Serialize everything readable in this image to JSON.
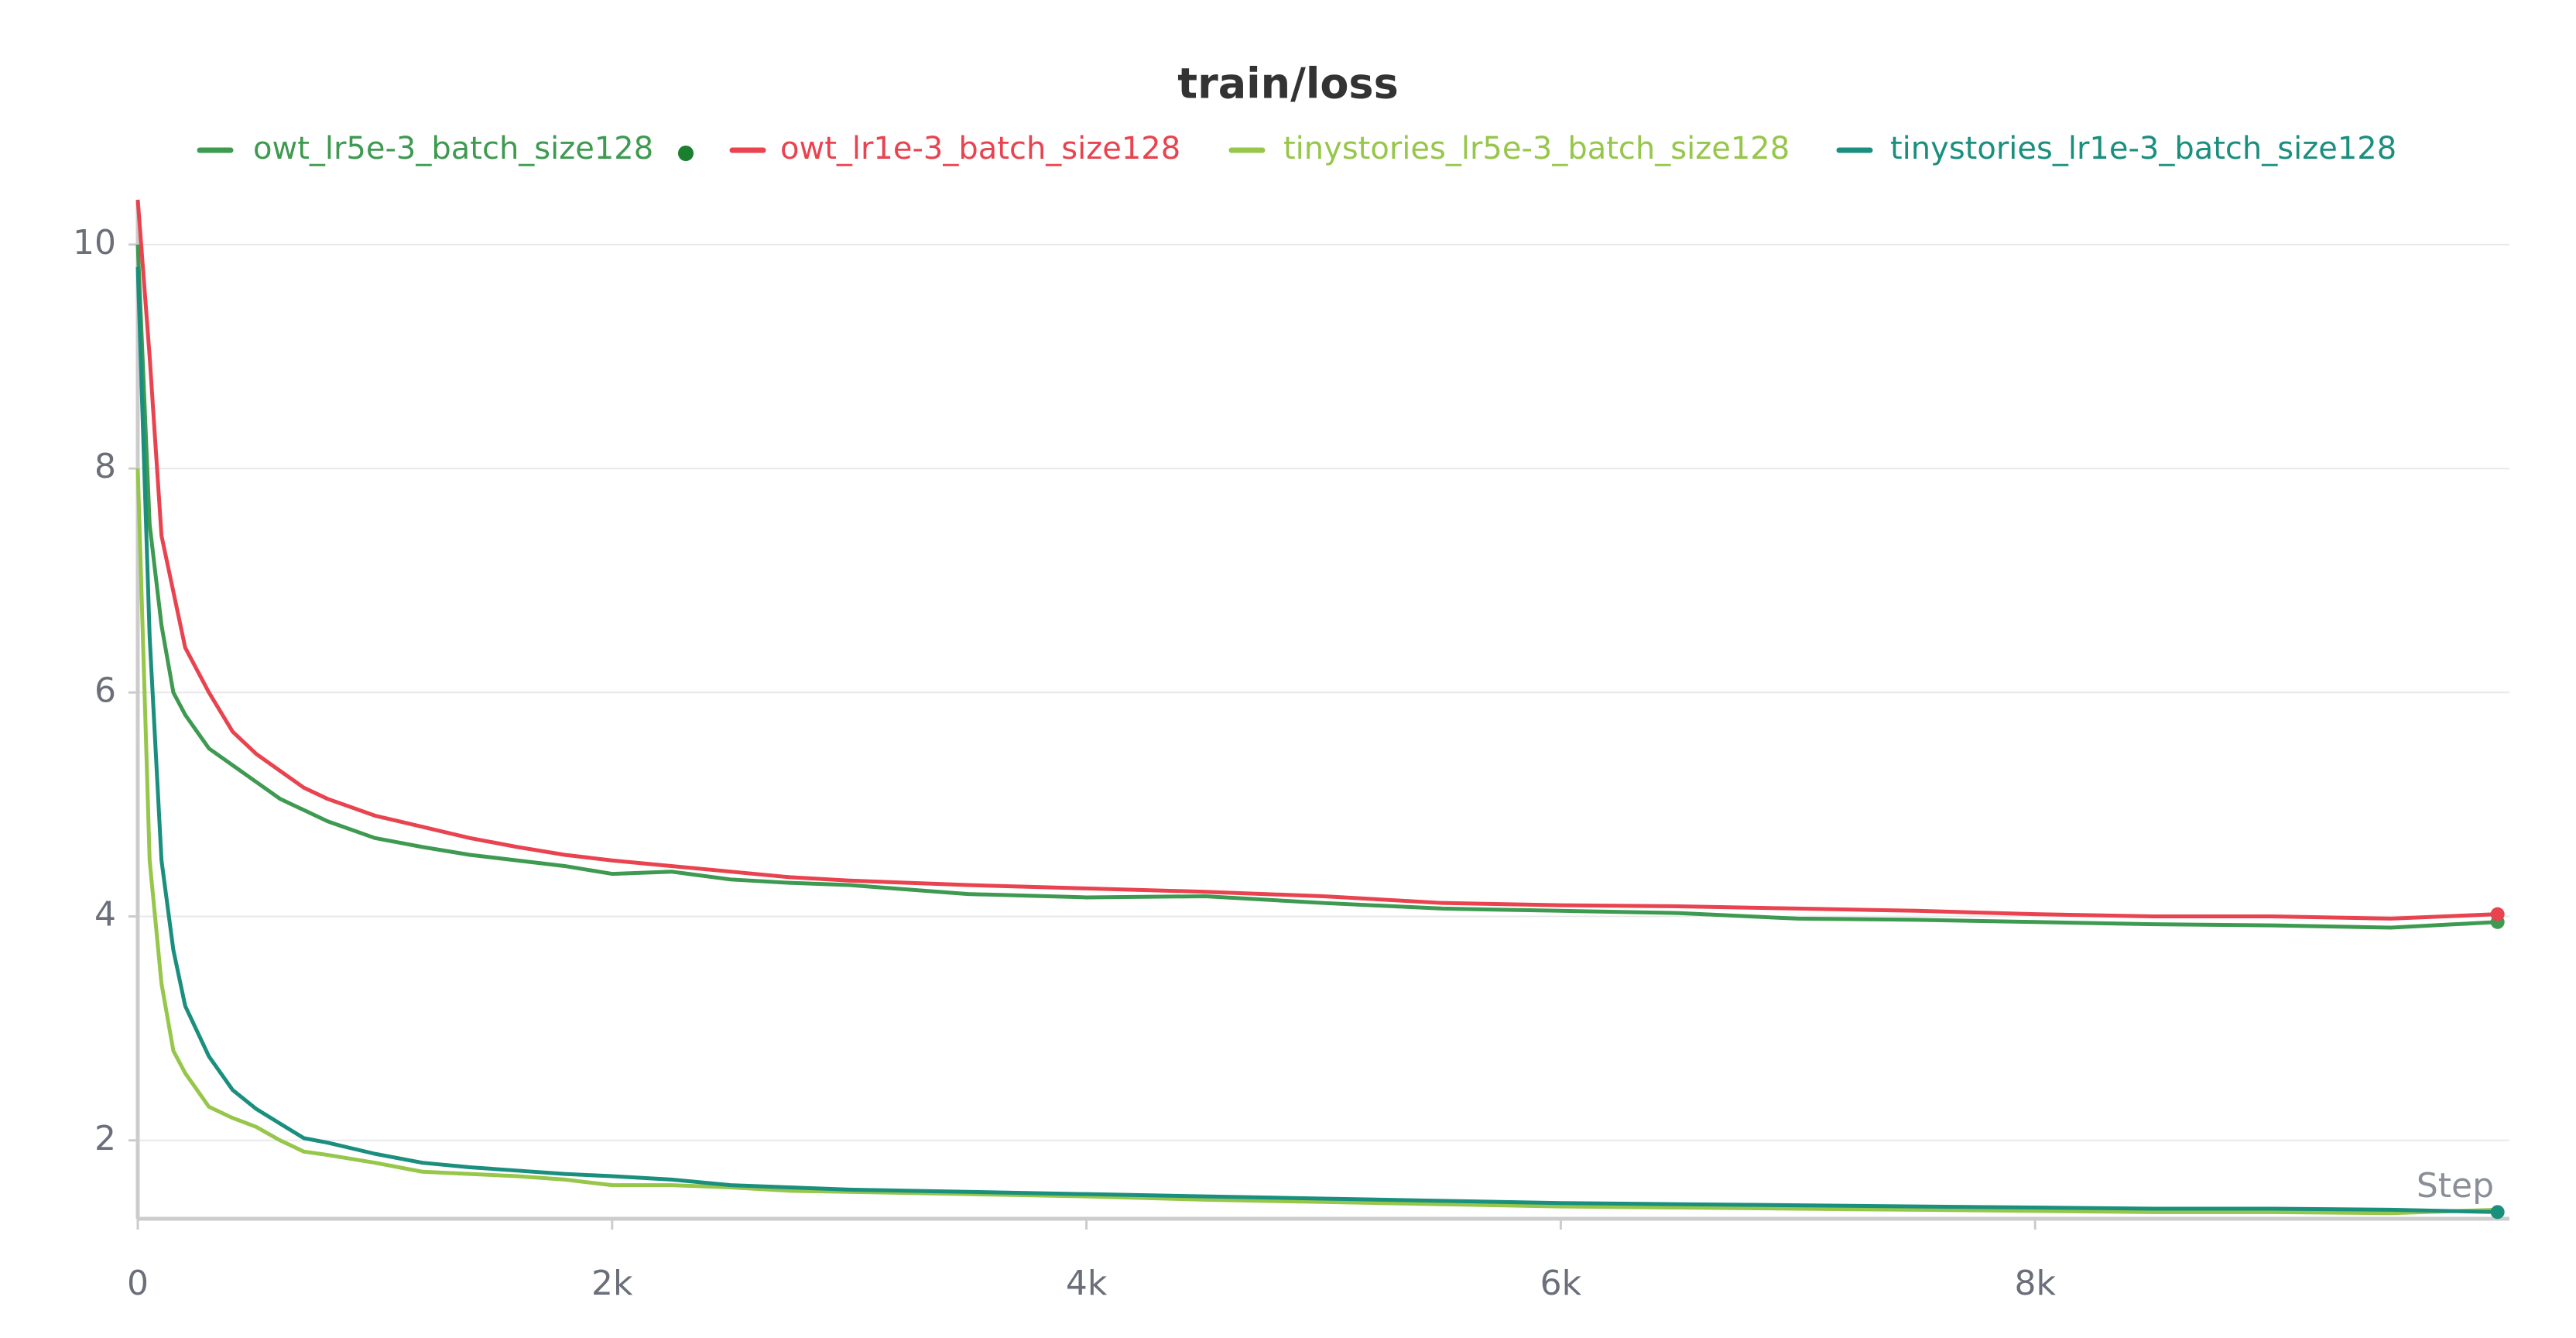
{
  "chart_data": {
    "type": "line",
    "title": "train/loss",
    "x_label": "Step",
    "x": [
      0,
      50,
      100,
      150,
      200,
      300,
      400,
      500,
      600,
      700,
      800,
      1000,
      1200,
      1400,
      1600,
      1800,
      2000,
      2250,
      2500,
      2750,
      3000,
      3500,
      4000,
      4500,
      5000,
      5500,
      6000,
      6500,
      7000,
      7500,
      8000,
      8500,
      9000,
      9500,
      9950
    ],
    "series": [
      {
        "name": "owt_lr5e-3_batch_size128",
        "color": "#3d9a50",
        "values": [
          10.0,
          7.5,
          6.6,
          6.0,
          5.8,
          5.5,
          5.35,
          5.2,
          5.05,
          4.95,
          4.85,
          4.7,
          4.62,
          4.55,
          4.5,
          4.45,
          4.38,
          4.4,
          4.33,
          4.3,
          4.28,
          4.2,
          4.17,
          4.18,
          4.12,
          4.07,
          4.05,
          4.03,
          3.98,
          3.97,
          3.95,
          3.93,
          3.92,
          3.9,
          3.95
        ]
      },
      {
        "name": "owt_lr1e-3_batch_size128",
        "color": "#e8434f",
        "values": [
          10.4,
          9.0,
          7.4,
          6.9,
          6.4,
          6.0,
          5.65,
          5.45,
          5.3,
          5.15,
          5.05,
          4.9,
          4.8,
          4.7,
          4.62,
          4.55,
          4.5,
          4.45,
          4.4,
          4.35,
          4.32,
          4.28,
          4.25,
          4.22,
          4.18,
          4.12,
          4.1,
          4.09,
          4.07,
          4.05,
          4.02,
          4.0,
          4.0,
          3.98,
          4.02
        ]
      },
      {
        "name": "tinystories_lr5e-3_batch_size128",
        "color": "#96c64a",
        "values": [
          8.0,
          4.5,
          3.4,
          2.8,
          2.6,
          2.3,
          2.2,
          2.12,
          2.0,
          1.9,
          1.87,
          1.8,
          1.72,
          1.7,
          1.68,
          1.65,
          1.6,
          1.6,
          1.58,
          1.55,
          1.54,
          1.52,
          1.5,
          1.47,
          1.45,
          1.43,
          1.41,
          1.4,
          1.39,
          1.38,
          1.37,
          1.36,
          1.36,
          1.35,
          1.38
        ]
      },
      {
        "name": "tinystories_lr1e-3_batch_size128",
        "color": "#1a8f7e",
        "values": [
          9.8,
          6.5,
          4.5,
          3.7,
          3.2,
          2.75,
          2.45,
          2.28,
          2.15,
          2.02,
          1.98,
          1.88,
          1.8,
          1.76,
          1.73,
          1.7,
          1.68,
          1.65,
          1.6,
          1.58,
          1.56,
          1.54,
          1.52,
          1.5,
          1.48,
          1.46,
          1.44,
          1.43,
          1.42,
          1.41,
          1.4,
          1.39,
          1.39,
          1.38,
          1.36
        ]
      }
    ],
    "xlim": [
      0,
      10000
    ],
    "xticks": [
      0,
      {
        "value": 2000,
        "label": "2k"
      },
      {
        "value": 4000,
        "label": "4k"
      },
      {
        "value": 6000,
        "label": "6k"
      },
      {
        "value": 8000,
        "label": "8k"
      }
    ],
    "ylim": [
      1.3,
      10.4
    ],
    "yticks": [
      2,
      4,
      6,
      8,
      10
    ],
    "grid": true
  }
}
